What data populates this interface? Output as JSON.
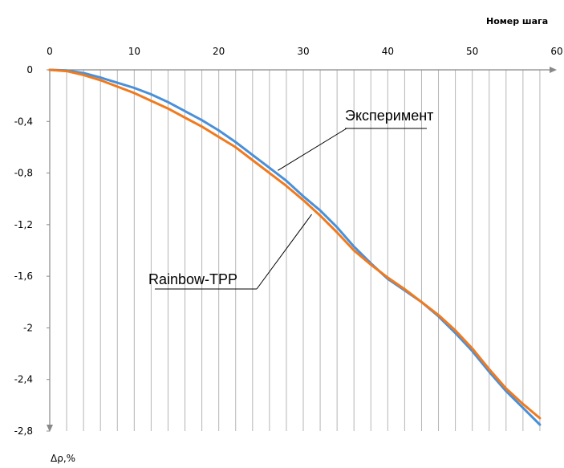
{
  "chart_data": {
    "type": "line",
    "xlabel": "Номер шага",
    "ylabel": "Δρ,%",
    "xlim": [
      0,
      60
    ],
    "ylim": [
      -2.8,
      0
    ],
    "x_ticks": [
      "0",
      "10",
      "20",
      "30",
      "40",
      "50",
      "60"
    ],
    "x_tick_values": [
      0,
      10,
      20,
      30,
      40,
      50,
      60
    ],
    "y_ticks": [
      "0",
      "-0,4",
      "-0,8",
      "-1,2",
      "-1,6",
      "-2",
      "-2,4",
      "-2,8"
    ],
    "y_tick_values": [
      0,
      -0.4,
      -0.8,
      -1.2,
      -1.6,
      -2,
      -2.4,
      -2.8
    ],
    "grid": {
      "vertical": true,
      "vertical_step": 2,
      "horizontal": false
    },
    "series": [
      {
        "name": "Эксперимент",
        "color": "#4a90d9",
        "x": [
          0,
          2,
          4,
          6,
          8,
          10,
          12,
          14,
          16,
          18,
          20,
          22,
          24,
          26,
          28,
          30,
          32,
          34,
          36,
          38,
          40,
          42,
          44,
          46,
          48,
          50,
          52,
          54,
          56,
          58
        ],
        "y": [
          0,
          -0.005,
          -0.025,
          -0.06,
          -0.1,
          -0.14,
          -0.19,
          -0.25,
          -0.32,
          -0.39,
          -0.47,
          -0.56,
          -0.66,
          -0.76,
          -0.86,
          -0.98,
          -1.09,
          -1.22,
          -1.37,
          -1.5,
          -1.62,
          -1.71,
          -1.8,
          -1.91,
          -2.04,
          -2.18,
          -2.34,
          -2.49,
          -2.62,
          -2.75
        ]
      },
      {
        "name": "Rainbow-TPP",
        "color": "#f07a1e",
        "x": [
          0,
          2,
          4,
          6,
          8,
          10,
          12,
          14,
          16,
          18,
          20,
          22,
          24,
          26,
          28,
          30,
          32,
          34,
          36,
          38,
          40,
          42,
          44,
          46,
          48,
          50,
          52,
          54,
          56,
          58
        ],
        "y": [
          0,
          -0.01,
          -0.04,
          -0.08,
          -0.13,
          -0.18,
          -0.24,
          -0.3,
          -0.37,
          -0.44,
          -0.52,
          -0.6,
          -0.7,
          -0.8,
          -0.9,
          -1.01,
          -1.13,
          -1.26,
          -1.4,
          -1.51,
          -1.61,
          -1.7,
          -1.8,
          -1.9,
          -2.02,
          -2.16,
          -2.32,
          -2.47,
          -2.59,
          -2.7
        ]
      }
    ],
    "annotations": [
      {
        "text": "Эксперимент",
        "points_to": "Эксперимент"
      },
      {
        "text": "Rainbow-TPP",
        "points_to": "Rainbow-TPP"
      }
    ]
  }
}
